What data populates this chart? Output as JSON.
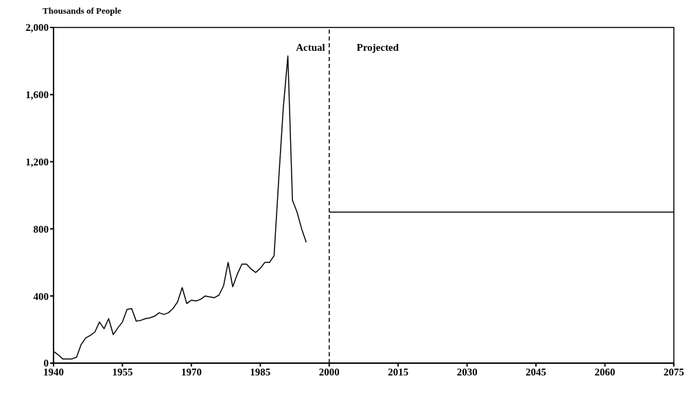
{
  "chart_data": {
    "type": "line",
    "ylabel": "Thousands of People",
    "xlim": [
      1940,
      2075
    ],
    "xticks": [
      1940,
      1955,
      1970,
      1985,
      2000,
      2015,
      2030,
      2045,
      2060,
      2075
    ],
    "ylim": [
      0,
      2000
    ],
    "yticks": [
      {
        "value": 0,
        "label": "0"
      },
      {
        "value": 400,
        "label": "400"
      },
      {
        "value": 800,
        "label": "800"
      },
      {
        "value": 1200,
        "label": "1,200"
      },
      {
        "value": 1600,
        "label": "1,600"
      },
      {
        "value": 2000,
        "label": "2,000"
      }
    ],
    "marker": "none",
    "line_style": "solid",
    "series": [
      {
        "color": "#000000",
        "x": [
          1940,
          1941,
          1942,
          1943,
          1944,
          1945,
          1946,
          1947,
          1948,
          1949,
          1950,
          1951,
          1952,
          1953,
          1954,
          1955,
          1956,
          1957,
          1958,
          1959,
          1960,
          1961,
          1962,
          1963,
          1964,
          1965,
          1966,
          1967,
          1968,
          1969,
          1970,
          1971,
          1972,
          1973,
          1974,
          1975,
          1976,
          1977,
          1978,
          1979,
          1980,
          1981,
          1982,
          1983,
          1984,
          1985,
          1986,
          1987,
          1988,
          1989,
          1990,
          1991,
          1992,
          1993,
          1994,
          1995
        ],
        "values": [
          70,
          50,
          25,
          25,
          25,
          35,
          110,
          150,
          165,
          185,
          245,
          205,
          265,
          170,
          210,
          245,
          320,
          325,
          250,
          255,
          265,
          270,
          280,
          300,
          290,
          300,
          325,
          365,
          450,
          355,
          375,
          370,
          380,
          400,
          395,
          390,
          405,
          460,
          600,
          455,
          530,
          590,
          590,
          560,
          540,
          565,
          600,
          600,
          640,
          1090,
          1520,
          1830,
          970,
          900,
          800,
          720
        ]
      },
      {
        "color": "#000000",
        "x": [
          2000,
          2075
        ],
        "values": [
          900,
          900
        ]
      }
    ],
    "ref_lines": [
      {
        "axis": "x",
        "value": 2000,
        "color": "#000000",
        "line_style": "dashed"
      }
    ],
    "annotations": [
      "Actual",
      "Projected"
    ]
  }
}
